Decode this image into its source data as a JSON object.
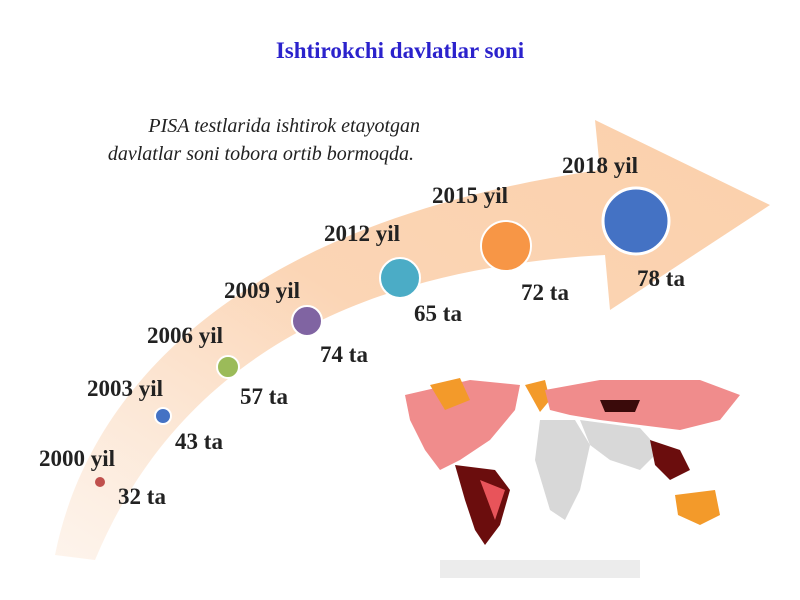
{
  "header": {
    "title": "Ishtirokchi davlatlar soni",
    "subtitle_lines": [
      "PISA testlarida ishtirok etayotgan",
      "davlatlar soni tobora ortib bormoqda."
    ]
  },
  "timeline": [
    {
      "year": "2000 yil",
      "count": "32 ta"
    },
    {
      "year": "2003 yil",
      "count": "43 ta"
    },
    {
      "year": "2006 yil",
      "count": "57 ta"
    },
    {
      "year": "2009 yil",
      "count": "74 ta"
    },
    {
      "year": "2012 yil",
      "count": "65 ta"
    },
    {
      "year": "2015 yil",
      "count": "72 ta"
    },
    {
      "year": "2018 yil",
      "count": "78 ta"
    }
  ]
}
